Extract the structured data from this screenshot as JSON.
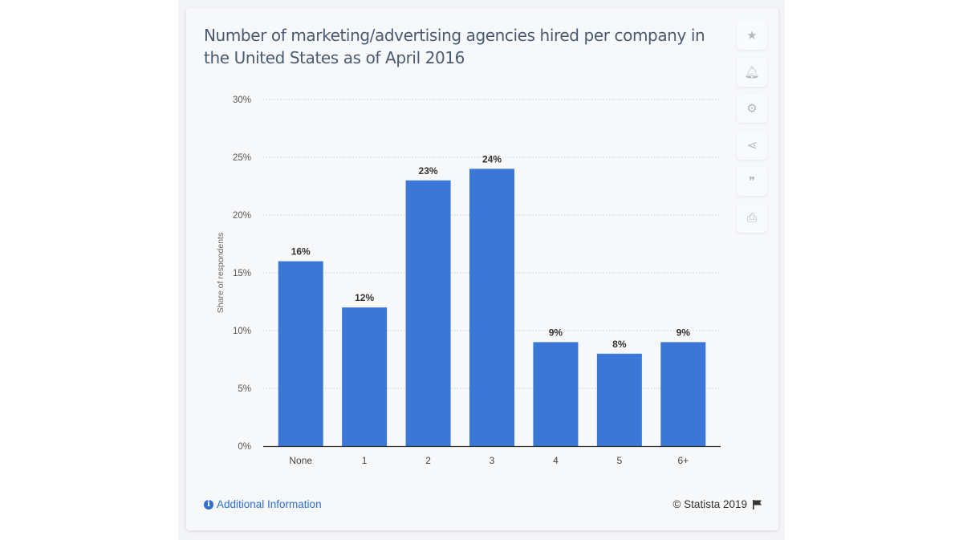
{
  "title": "Number of marketing/advertising agencies hired per company in the United States as of April 2016",
  "tools": [
    {
      "icon": "star-icon",
      "glyph": "★"
    },
    {
      "icon": "bell-icon",
      "glyph": "🔔︎"
    },
    {
      "icon": "gear-icon",
      "glyph": "⚙"
    },
    {
      "icon": "share-icon",
      "glyph": "⋖"
    },
    {
      "icon": "quote-icon",
      "glyph": "❞"
    },
    {
      "icon": "print-icon",
      "glyph": "⎙"
    }
  ],
  "footer": {
    "additional_info": "Additional Information",
    "copyright": "© Statista 2019"
  },
  "chart_data": {
    "type": "bar",
    "title": "Number of marketing/advertising agencies hired per company in the United States as of April 2016",
    "categories": [
      "None",
      "1",
      "2",
      "3",
      "4",
      "5",
      "6+"
    ],
    "values": [
      16,
      12,
      23,
      24,
      9,
      8,
      9
    ],
    "data_labels": [
      "16%",
      "12%",
      "23%",
      "24%",
      "9%",
      "8%",
      "9%"
    ],
    "ylabel": "Share of respondents",
    "xlabel": "",
    "ylim": [
      0,
      30
    ],
    "yticks": [
      "0%",
      "5%",
      "10%",
      "15%",
      "20%",
      "25%",
      "30%"
    ],
    "grid": true,
    "bar_color": "#3b77d6"
  }
}
